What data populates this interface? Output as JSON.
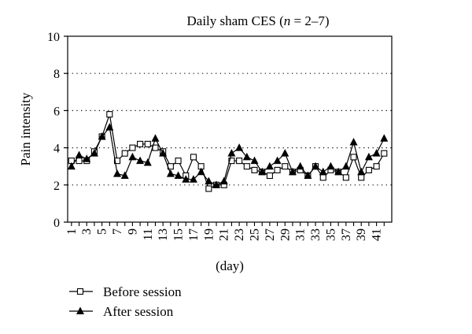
{
  "chart_data": {
    "type": "line",
    "title_prefix": "Daily sham CES (",
    "title_n": "n",
    "title_suffix": " = 2–7)",
    "xlabel": "(day)",
    "ylabel": "Pain intensity",
    "ylim": [
      0,
      10
    ],
    "y_ticks": [
      "0",
      "2",
      "4",
      "6",
      "8",
      "10"
    ],
    "x_ticks": [
      "1",
      "3",
      "5",
      "7",
      "9",
      "11",
      "13",
      "15",
      "17",
      "19",
      "21",
      "23",
      "25",
      "27",
      "29",
      "31",
      "33",
      "35",
      "37",
      "39",
      "41"
    ],
    "grid": "dotted horizontal",
    "legend_position": "bottom-left",
    "x": [
      1,
      2,
      3,
      4,
      5,
      6,
      7,
      8,
      9,
      10,
      11,
      12,
      13,
      14,
      15,
      16,
      17,
      18,
      19,
      20,
      21,
      22,
      23,
      24,
      25,
      26,
      27,
      28,
      29,
      30,
      31,
      32,
      33,
      34,
      35,
      36,
      37,
      38,
      39,
      40,
      41,
      42
    ],
    "series": [
      {
        "name": "Before session",
        "marker": "open-square",
        "color": "#000000",
        "values": [
          3.3,
          3.3,
          3.3,
          3.8,
          4.6,
          5.8,
          3.3,
          3.7,
          4.0,
          4.2,
          4.2,
          4.0,
          3.8,
          3.0,
          3.3,
          2.5,
          3.5,
          3.0,
          1.8,
          2.0,
          2.0,
          3.3,
          3.3,
          3.0,
          2.8,
          2.7,
          2.5,
          2.8,
          3.0,
          2.7,
          2.8,
          2.5,
          3.0,
          2.4,
          2.8,
          2.7,
          2.4,
          3.5,
          2.4,
          2.8,
          3.0,
          3.7
        ]
      },
      {
        "name": "After session",
        "marker": "filled-triangle",
        "color": "#000000",
        "values": [
          3.0,
          3.6,
          3.4,
          3.7,
          4.6,
          5.1,
          2.6,
          2.5,
          3.5,
          3.3,
          3.2,
          4.5,
          3.7,
          2.6,
          2.5,
          2.3,
          2.3,
          2.7,
          2.2,
          2.0,
          2.2,
          3.7,
          4.0,
          3.5,
          3.3,
          2.7,
          3.0,
          3.3,
          3.7,
          2.7,
          3.0,
          2.5,
          3.0,
          2.7,
          3.0,
          2.7,
          3.0,
          4.3,
          2.7,
          3.5,
          3.7,
          4.5
        ]
      }
    ]
  }
}
